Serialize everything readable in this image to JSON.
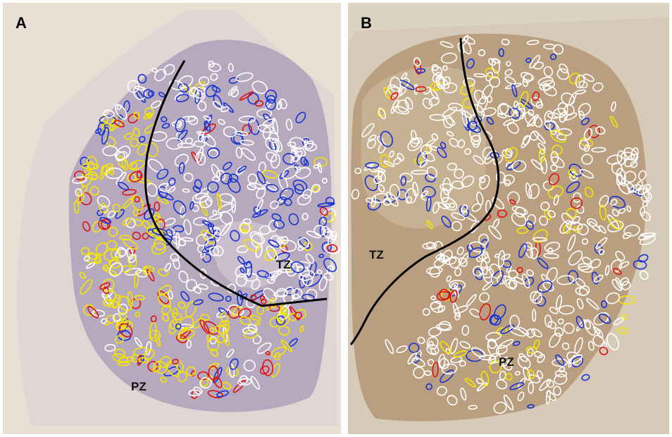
{
  "panels": [
    {
      "label": "A",
      "zones": {
        "tz": "TZ",
        "pz": "PZ"
      }
    },
    {
      "label": "B",
      "zones": {
        "tz": "TZ",
        "pz": "PZ"
      }
    }
  ],
  "colors": {
    "tissue_a": "#b7a9bd",
    "tissue_a_light": "#cfc3cf",
    "tissue_b": "#b99f80",
    "tissue_b_light": "#c9b295",
    "outline_white": "#ffffff",
    "outline_yellow": "#f5e600",
    "outline_blue": "#1633d6",
    "outline_red": "#e01010",
    "zone_boundary": "#000000"
  }
}
